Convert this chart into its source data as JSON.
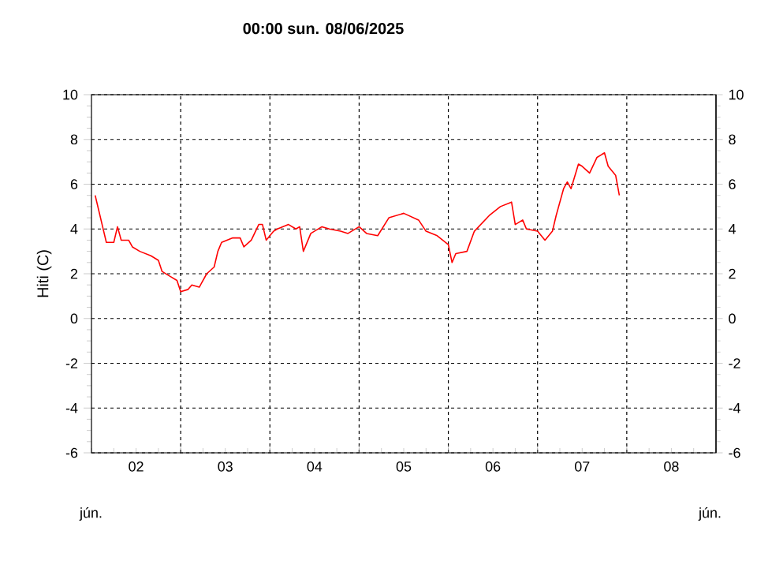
{
  "chart_data": {
    "type": "line",
    "title": "00:00 sun. 08/06/2025",
    "ylabel": "Hiti (C)",
    "annotations": [
      "jún.",
      "jún."
    ],
    "xlim": [
      "2025-06-02T00:00",
      "2025-06-09T00:00"
    ],
    "xticks": [
      {
        "value": "2025-06-02T12:00",
        "label": "02"
      },
      {
        "value": "2025-06-03T00:00",
        "label": null
      },
      {
        "value": "2025-06-03T12:00",
        "label": "03"
      },
      {
        "value": "2025-06-04T00:00",
        "label": null
      },
      {
        "value": "2025-06-04T12:00",
        "label": "04"
      },
      {
        "value": "2025-06-05T00:00",
        "label": null
      },
      {
        "value": "2025-06-05T12:00",
        "label": "05"
      },
      {
        "value": "2025-06-06T00:00",
        "label": null
      },
      {
        "value": "2025-06-06T12:00",
        "label": "06"
      },
      {
        "value": "2025-06-07T00:00",
        "label": null
      },
      {
        "value": "2025-06-07T12:00",
        "label": "07"
      },
      {
        "value": "2025-06-08T00:00",
        "label": null
      },
      {
        "value": "2025-06-08T12:00",
        "label": "08"
      }
    ],
    "ylim": [
      -6,
      10
    ],
    "yticks": [
      -6,
      -4,
      -2,
      0,
      2,
      4,
      6,
      8,
      10
    ],
    "y2lim": [
      -6,
      10
    ],
    "y2ticks": [
      -6,
      -4,
      -2,
      0,
      2,
      4,
      6,
      8,
      10
    ],
    "grid": true,
    "series": [
      {
        "color": "#ff0000",
        "x": [
          "2025-06-02T01:00",
          "2025-06-02T02:00",
          "2025-06-02T03:00",
          "2025-06-02T04:00",
          "2025-06-02T06:00",
          "2025-06-02T07:00",
          "2025-06-02T08:00",
          "2025-06-02T10:00",
          "2025-06-02T11:00",
          "2025-06-02T13:00",
          "2025-06-02T16:00",
          "2025-06-02T18:00",
          "2025-06-02T19:00",
          "2025-06-02T21:00",
          "2025-06-02T23:00",
          "2025-06-03T00:00",
          "2025-06-03T02:00",
          "2025-06-03T03:00",
          "2025-06-03T05:00",
          "2025-06-03T07:00",
          "2025-06-03T09:00",
          "2025-06-03T10:00",
          "2025-06-03T11:00",
          "2025-06-03T14:00",
          "2025-06-03T16:00",
          "2025-06-03T17:00",
          "2025-06-03T19:00",
          "2025-06-03T21:00",
          "2025-06-03T22:00",
          "2025-06-03T23:00",
          "2025-06-04T01:00",
          "2025-06-04T02:00",
          "2025-06-04T05:00",
          "2025-06-04T07:00",
          "2025-06-04T08:00",
          "2025-06-04T09:00",
          "2025-06-04T11:00",
          "2025-06-04T14:00",
          "2025-06-04T16:00",
          "2025-06-04T19:00",
          "2025-06-04T21:00",
          "2025-06-05T00:00",
          "2025-06-05T02:00",
          "2025-06-05T05:00",
          "2025-06-05T08:00",
          "2025-06-05T12:00",
          "2025-06-05T16:00",
          "2025-06-05T18:00",
          "2025-06-05T21:00",
          "2025-06-06T00:00",
          "2025-06-06T01:00",
          "2025-06-06T02:00",
          "2025-06-06T05:00",
          "2025-06-06T07:00",
          "2025-06-06T11:00",
          "2025-06-06T14:00",
          "2025-06-06T17:00",
          "2025-06-06T18:00",
          "2025-06-06T20:00",
          "2025-06-06T21:00",
          "2025-06-07T00:00",
          "2025-06-07T02:00",
          "2025-06-07T04:00",
          "2025-06-07T05:00",
          "2025-06-07T07:00",
          "2025-06-07T08:00",
          "2025-06-07T09:00",
          "2025-06-07T11:00",
          "2025-06-07T12:00",
          "2025-06-07T14:00",
          "2025-06-07T16:00",
          "2025-06-07T18:00",
          "2025-06-07T19:00",
          "2025-06-07T21:00",
          "2025-06-07T22:00"
        ],
        "values": [
          5.5,
          4.8,
          4.1,
          3.4,
          3.4,
          4.1,
          3.5,
          3.5,
          3.2,
          3.0,
          2.8,
          2.6,
          2.1,
          1.9,
          1.7,
          1.2,
          1.3,
          1.5,
          1.4,
          2.0,
          2.3,
          3.0,
          3.4,
          3.6,
          3.6,
          3.2,
          3.5,
          4.2,
          4.2,
          3.5,
          3.9,
          4.0,
          4.2,
          4.0,
          4.1,
          3.0,
          3.8,
          4.1,
          4.0,
          3.9,
          3.8,
          4.1,
          3.8,
          3.7,
          4.5,
          4.7,
          4.4,
          3.9,
          3.7,
          3.3,
          2.5,
          2.9,
          3.0,
          3.9,
          4.6,
          5.0,
          5.2,
          4.2,
          4.4,
          4.0,
          3.9,
          3.5,
          3.9,
          4.6,
          5.8,
          6.1,
          5.8,
          6.9,
          6.8,
          6.5,
          7.2,
          7.4,
          6.8,
          6.4,
          5.5
        ]
      }
    ]
  }
}
